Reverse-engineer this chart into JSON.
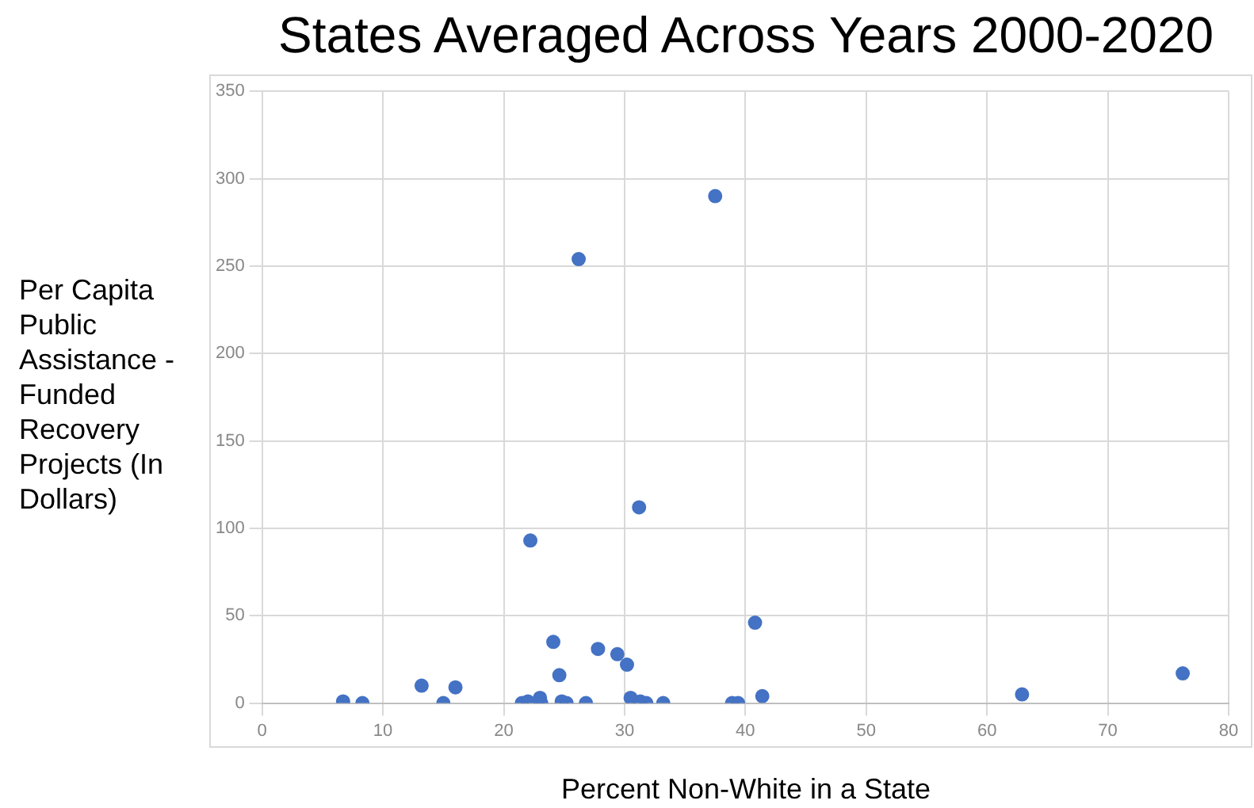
{
  "chart_data": {
    "type": "scatter",
    "title": "States Averaged Across Years 2000-2020",
    "xlabel": "Percent Non-White in a State",
    "ylabel": "Per Capita Public Assistance -Funded Recovery Projects (In Dollars)",
    "series": [
      {
        "color": "#4472c4",
        "x": [
          6.7,
          8.3,
          13.2,
          15,
          16,
          21.5,
          22,
          23,
          23.1,
          22.2,
          24.1,
          24.6,
          24.8,
          25.2,
          26.2,
          26.8,
          27.8,
          29.4,
          30.2,
          30.5,
          31.2,
          31.3,
          31.8,
          33.2,
          37.5,
          38.9,
          39.4,
          40.8,
          41.4,
          62.9,
          76.2
        ],
        "values": [
          1,
          0,
          10,
          0,
          9,
          0,
          1,
          3,
          0,
          93,
          35,
          16,
          1,
          0,
          254,
          0,
          31,
          28,
          22,
          3,
          112,
          1,
          0,
          0,
          290,
          0,
          0,
          46,
          4,
          5,
          17
        ]
      }
    ],
    "xlim": [
      0,
      80
    ],
    "xticks": [
      0,
      10,
      20,
      30,
      40,
      50,
      60,
      70,
      80
    ],
    "ylim": [
      0,
      350
    ],
    "yticks": [
      0,
      50,
      100,
      150,
      200,
      250,
      300,
      350
    ],
    "grid": true,
    "legend": false,
    "marker": "circle"
  }
}
